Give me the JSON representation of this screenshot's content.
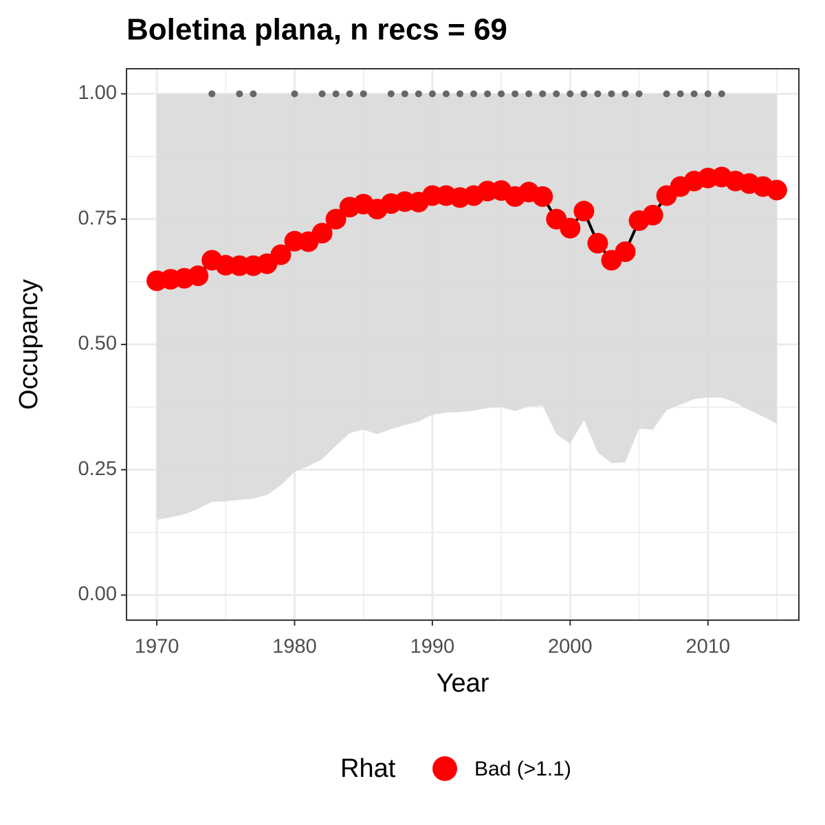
{
  "chart_data": {
    "type": "line",
    "title": "Boletina plana, n recs = 69",
    "x_label": "Year",
    "y_label": "Occupancy",
    "legend_title": "Rhat",
    "legend_position": "bottom",
    "grid": true,
    "x": [
      1970,
      1971,
      1972,
      1973,
      1974,
      1975,
      1976,
      1977,
      1978,
      1979,
      1980,
      1981,
      1982,
      1983,
      1984,
      1985,
      1986,
      1987,
      1988,
      1989,
      1990,
      1991,
      1992,
      1993,
      1994,
      1995,
      1996,
      1997,
      1998,
      1999,
      2000,
      2001,
      2002,
      2003,
      2004,
      2005,
      2006,
      2007,
      2008,
      2009,
      2010,
      2011,
      2012,
      2013,
      2014,
      2015
    ],
    "series": [
      {
        "name": "Bad (>1.1)",
        "color": "#ff0000",
        "line_color": "#000000",
        "values": [
          0.627,
          0.63,
          0.632,
          0.637,
          0.668,
          0.658,
          0.657,
          0.657,
          0.661,
          0.679,
          0.706,
          0.705,
          0.722,
          0.75,
          0.774,
          0.78,
          0.77,
          0.781,
          0.785,
          0.784,
          0.797,
          0.797,
          0.793,
          0.797,
          0.806,
          0.807,
          0.795,
          0.804,
          0.795,
          0.75,
          0.732,
          0.766,
          0.702,
          0.668,
          0.685,
          0.747,
          0.758,
          0.797,
          0.815,
          0.826,
          0.832,
          0.834,
          0.826,
          0.821,
          0.815,
          0.808
        ]
      }
    ],
    "band": {
      "color": "#d9d9d9",
      "lower": [
        0.15,
        0.155,
        0.161,
        0.172,
        0.186,
        0.187,
        0.19,
        0.192,
        0.2,
        0.219,
        0.246,
        0.257,
        0.271,
        0.298,
        0.323,
        0.33,
        0.321,
        0.331,
        0.339,
        0.346,
        0.36,
        0.364,
        0.365,
        0.368,
        0.373,
        0.375,
        0.367,
        0.376,
        0.378,
        0.321,
        0.302,
        0.349,
        0.285,
        0.263,
        0.265,
        0.332,
        0.33,
        0.369,
        0.38,
        0.391,
        0.394,
        0.394,
        0.384,
        0.369,
        0.356,
        0.342
      ],
      "upper": [
        1,
        1,
        1,
        1,
        1,
        1,
        1,
        1,
        1,
        1,
        1,
        1,
        1,
        1,
        1,
        1,
        1,
        1,
        1,
        1,
        1,
        1,
        1,
        1,
        1,
        1,
        1,
        1,
        1,
        1,
        1,
        1,
        1,
        1,
        1,
        1,
        1,
        1,
        1,
        1,
        1,
        1,
        1,
        1,
        1,
        1
      ]
    },
    "records": {
      "color": "#666666",
      "x": [
        1974,
        1976,
        1977,
        1980,
        1982,
        1983,
        1984,
        1985,
        1987,
        1988,
        1989,
        1990,
        1991,
        1992,
        1993,
        1994,
        1995,
        1996,
        1997,
        1998,
        1999,
        2000,
        2001,
        2002,
        2003,
        2004,
        2005,
        2007,
        2008,
        2009,
        2010,
        2011
      ],
      "values": [
        1,
        1,
        1,
        1,
        1,
        1,
        1,
        1,
        1,
        1,
        1,
        1,
        1,
        1,
        1,
        1,
        1,
        1,
        1,
        1,
        1,
        1,
        1,
        1,
        1,
        1,
        1,
        1,
        1,
        1,
        1,
        1
      ]
    },
    "xlim": [
      1967.8,
      2016.6
    ],
    "ylim": [
      -0.05,
      1.05
    ],
    "xticks": [
      1970,
      1980,
      1990,
      2000,
      2010
    ],
    "yticks": [
      {
        "value": 0,
        "label": "0.00"
      },
      {
        "value": 0.25,
        "label": "0.25"
      },
      {
        "value": 0.5,
        "label": "0.50"
      },
      {
        "value": 0.75,
        "label": "0.75"
      },
      {
        "value": 1,
        "label": "1.00"
      }
    ],
    "x_minor_ticks": [
      1975,
      1985,
      1995,
      2005,
      2015
    ],
    "y_minor_ticks": [
      0.125,
      0.375,
      0.625,
      0.875
    ]
  }
}
